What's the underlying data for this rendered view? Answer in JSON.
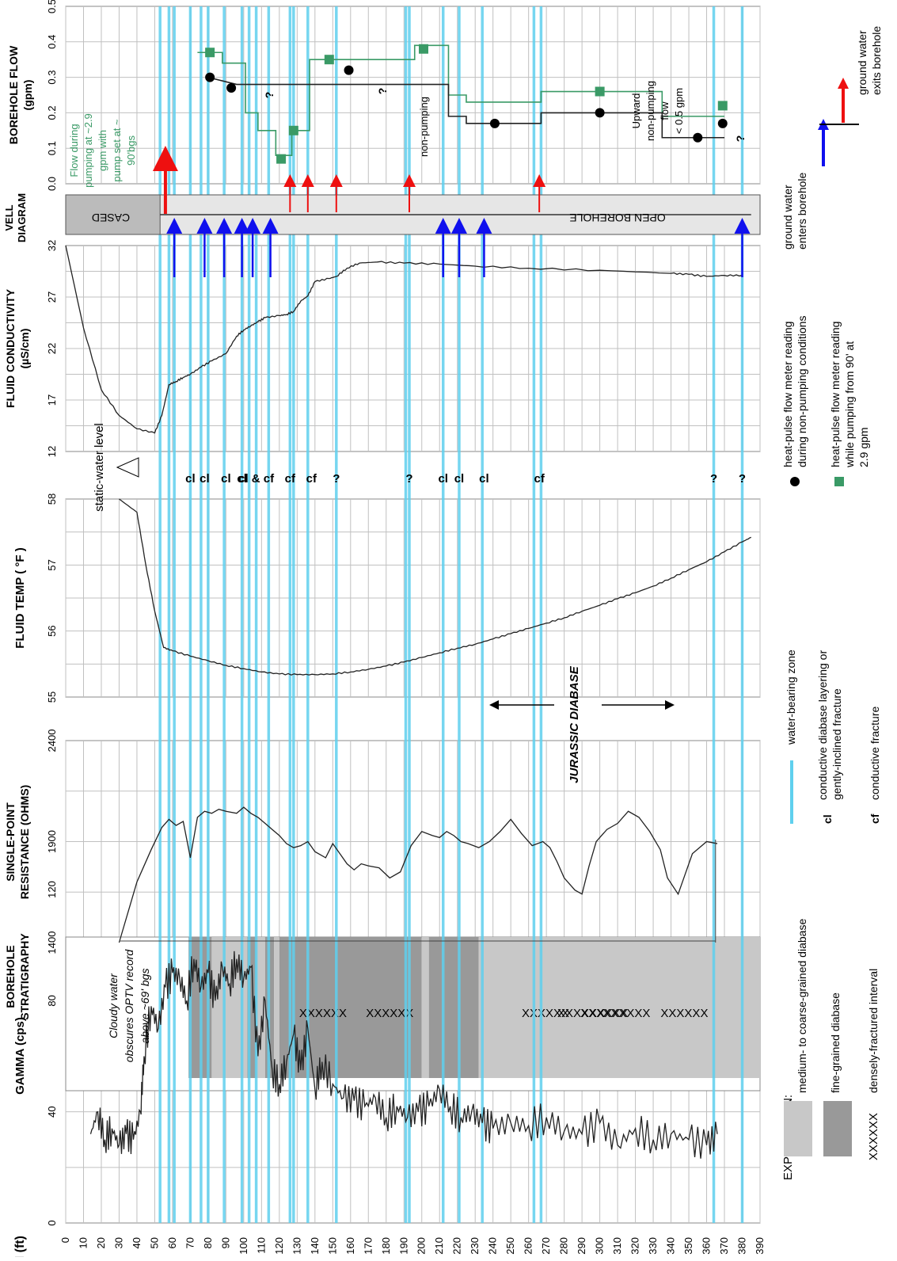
{
  "chart_data": {
    "type": "line",
    "orientation": "rotated-90",
    "depth_axis": {
      "label": "DEPTH (ft)",
      "range": [
        0,
        390
      ],
      "ticks": [
        0,
        10,
        20,
        30,
        40,
        50,
        60,
        70,
        80,
        90,
        100,
        110,
        120,
        130,
        140,
        150,
        160,
        170,
        180,
        190,
        200,
        210,
        220,
        230,
        240,
        250,
        260,
        270,
        280,
        290,
        300,
        310,
        320,
        330,
        340,
        350,
        360,
        370,
        380,
        390
      ]
    },
    "panels": [
      {
        "id": "gamma",
        "title": "GAMMA (cps)",
        "range": [
          0,
          120
        ],
        "ticks": [
          0,
          40,
          80,
          120
        ]
      },
      {
        "id": "strat",
        "title": "BOREHOLE STRATIGRAPHY",
        "range": [],
        "ticks": []
      },
      {
        "id": "spr",
        "title": "SINGLE-POINT RESISTANCE (OHMS)",
        "range": [
          1400,
          2400
        ],
        "ticks": [
          1400,
          1900,
          2400
        ]
      },
      {
        "id": "temp",
        "title": "FLUID TEMP ( °F )",
        "range": [
          55,
          58
        ],
        "ticks": [
          55,
          56,
          57,
          58
        ]
      },
      {
        "id": "cond",
        "title": "FLUID CONDUCTIVITY (µS/cm)",
        "range": [
          12,
          32
        ],
        "ticks": [
          12,
          17,
          22,
          27,
          32
        ]
      },
      {
        "id": "well",
        "title": "VELL DIAGRAM",
        "range": [],
        "ticks": []
      },
      {
        "id": "flow",
        "title": "BOREHOLE FLOW (gpm)",
        "range": [
          0,
          0.5
        ],
        "ticks": [
          "0.0",
          "0.1",
          "0.2",
          "0.3",
          "0.4",
          "0.5"
        ]
      }
    ],
    "series": {
      "gamma": {
        "depth": [
          14,
          18,
          22,
          26,
          30,
          34,
          38,
          42,
          44,
          48,
          52,
          56,
          60,
          64,
          68,
          72,
          76,
          80,
          84,
          88,
          92,
          96,
          100,
          104,
          108,
          112,
          116,
          120,
          124,
          128,
          132,
          136,
          140,
          144,
          150,
          156,
          162,
          168,
          174,
          180,
          186,
          192,
          198,
          204,
          210,
          216,
          222,
          228,
          234,
          240,
          250,
          260,
          270,
          280,
          290,
          300,
          310,
          320,
          330,
          340,
          350,
          360,
          366
        ],
        "value": [
          32,
          40,
          30,
          34,
          28,
          32,
          30,
          40,
          60,
          78,
          70,
          85,
          90,
          88,
          80,
          95,
          85,
          90,
          80,
          92,
          86,
          95,
          88,
          92,
          60,
          80,
          55,
          50,
          58,
          68,
          55,
          70,
          48,
          58,
          50,
          45,
          44,
          42,
          45,
          38,
          42,
          38,
          40,
          42,
          48,
          42,
          38,
          40,
          36,
          34,
          36,
          35,
          38,
          33,
          32,
          36,
          28,
          34,
          30,
          32,
          30,
          28,
          32
        ]
      },
      "spr": {
        "depth": [
          30,
          40,
          48,
          54,
          58,
          62,
          66,
          70,
          74,
          78,
          82,
          86,
          90,
          96,
          100,
          104,
          108,
          112,
          116,
          120,
          124,
          128,
          132,
          136,
          140,
          146,
          150,
          154,
          158,
          162,
          166,
          170,
          176,
          182,
          188,
          194,
          200,
          206,
          210,
          214,
          218,
          222,
          226,
          232,
          238,
          244,
          250,
          256,
          262,
          268,
          272,
          276,
          280,
          286,
          290,
          294,
          298,
          304,
          310,
          316,
          322,
          328,
          334,
          338,
          344,
          348,
          352,
          356,
          360,
          366
        ],
        "value": [
          1400,
          1700,
          1860,
          1970,
          2010,
          1980,
          2000,
          1820,
          2020,
          2050,
          2040,
          2060,
          2050,
          2040,
          2070,
          2040,
          2020,
          1990,
          1960,
          1930,
          1890,
          1870,
          1880,
          1900,
          1850,
          1820,
          1890,
          1840,
          1790,
          1760,
          1790,
          1780,
          1770,
          1720,
          1750,
          1880,
          1950,
          1930,
          1920,
          1950,
          1930,
          1900,
          1890,
          1870,
          1900,
          1950,
          2010,
          1940,
          1880,
          1900,
          1870,
          1800,
          1720,
          1660,
          1640,
          1780,
          1900,
          1960,
          1990,
          2050,
          2020,
          1950,
          1860,
          1720,
          1640,
          1740,
          1840,
          1870,
          1900,
          1890
        ]
      },
      "temp": {
        "depth": [
          30,
          40,
          45,
          50,
          55,
          60,
          70,
          80,
          90,
          100,
          110,
          120,
          130,
          140,
          150,
          160,
          170,
          180,
          190,
          200,
          210,
          220,
          230,
          240,
          250,
          260,
          270,
          280,
          290,
          300,
          310,
          320,
          330,
          340,
          350,
          360,
          370,
          380,
          385
        ],
        "value": [
          58.0,
          57.8,
          57.0,
          56.3,
          55.75,
          55.7,
          55.62,
          55.55,
          55.48,
          55.43,
          55.38,
          55.35,
          55.34,
          55.34,
          55.35,
          55.38,
          55.42,
          55.47,
          55.53,
          55.6,
          55.67,
          55.74,
          55.8,
          55.88,
          55.96,
          56.04,
          56.12,
          56.2,
          56.3,
          56.39,
          56.49,
          56.58,
          56.68,
          56.8,
          56.93,
          57.05,
          57.2,
          57.35,
          57.42
        ]
      },
      "conductivity": {
        "depth": [
          0,
          10,
          20,
          30,
          40,
          50,
          54,
          58,
          62,
          66,
          70,
          76,
          82,
          90,
          96,
          100,
          104,
          108,
          112,
          120,
          124,
          128,
          132,
          136,
          140,
          148,
          152,
          158,
          165,
          175,
          190,
          210,
          230,
          260,
          300,
          340,
          350,
          360,
          370,
          380
        ],
        "value": [
          32,
          24,
          18,
          15.5,
          14.2,
          13.8,
          15.5,
          18.5,
          18.8,
          19.2,
          19.5,
          20.2,
          20.8,
          21.5,
          23.2,
          23.8,
          24.2,
          24.6,
          25,
          25.2,
          25.3,
          25.6,
          26.6,
          27.1,
          28.5,
          28.8,
          29,
          29.8,
          30.3,
          30.4,
          30.3,
          30.2,
          30,
          29.8,
          29.6,
          29.3,
          29.2,
          29.0,
          29.1,
          29.1
        ]
      },
      "flow_nonpumping_points": {
        "depth": [
          81,
          93,
          159,
          241,
          300,
          355,
          369
        ],
        "value": [
          0.3,
          0.27,
          0.32,
          0.17,
          0.2,
          0.13,
          0.17
        ]
      },
      "flow_pumping_points": {
        "depth": [
          81,
          121,
          128,
          148,
          201,
          300,
          369
        ],
        "value": [
          0.37,
          0.07,
          0.15,
          0.35,
          0.38,
          0.26,
          0.22
        ]
      },
      "flow_pumping_step": {
        "depth": [
          74,
          88,
          88,
          101,
          101,
          108,
          108,
          118,
          118,
          127,
          127,
          137,
          137,
          196,
          196,
          215,
          215,
          225,
          225,
          267,
          267,
          335,
          335,
          370
        ],
        "value": [
          0.37,
          0.37,
          0.34,
          0.34,
          0.2,
          0.2,
          0.15,
          0.15,
          0.08,
          0.08,
          0.15,
          0.15,
          0.35,
          0.35,
          0.39,
          0.39,
          0.25,
          0.25,
          0.23,
          0.23,
          0.26,
          0.26,
          0.19,
          0.19
        ]
      },
      "flow_nonpumping_step": {
        "depth": [
          80,
          96,
          215,
          215,
          225,
          225,
          267,
          267,
          335,
          335,
          370
        ],
        "value": [
          0.3,
          0.28,
          0.28,
          0.19,
          0.19,
          0.17,
          0.17,
          0.2,
          0.2,
          0.13,
          0.13
        ]
      }
    },
    "water_bearing_zones_ft": [
      53,
      58,
      61,
      70,
      76,
      80,
      89,
      99,
      103,
      107,
      114,
      126,
      128,
      136,
      152,
      191,
      193,
      212,
      221,
      234,
      263,
      267,
      364,
      380
    ],
    "feature_labels": [
      {
        "depth": 70,
        "text": "cl"
      },
      {
        "depth": 78,
        "text": "cl"
      },
      {
        "depth": 90,
        "text": "cl"
      },
      {
        "depth": 99,
        "text": "cl"
      },
      {
        "depth": 107,
        "text": "cl & cf"
      },
      {
        "depth": 126,
        "text": "cf"
      },
      {
        "depth": 138,
        "text": "cf"
      },
      {
        "depth": 152,
        "text": "?"
      },
      {
        "depth": 193,
        "text": "?"
      },
      {
        "depth": 212,
        "text": "cl"
      },
      {
        "depth": 221,
        "text": "cl"
      },
      {
        "depth": 235,
        "text": "cl"
      },
      {
        "depth": 266,
        "text": "cf"
      },
      {
        "depth": 364,
        "text": "?"
      },
      {
        "depth": 380,
        "text": "?"
      }
    ],
    "stratigraphy": [
      {
        "top": 69,
        "bottom": 82,
        "type": "fine"
      },
      {
        "top": 82,
        "bottom": 102,
        "type": "medium"
      },
      {
        "top": 102,
        "bottom": 107,
        "type": "fine"
      },
      {
        "top": 107,
        "bottom": 112,
        "type": "medium"
      },
      {
        "top": 112,
        "bottom": 117,
        "type": "fine"
      },
      {
        "top": 117,
        "bottom": 120,
        "type": "medium"
      },
      {
        "top": 120,
        "bottom": 200,
        "type": "fine"
      },
      {
        "top": 200,
        "bottom": 204,
        "type": "medium"
      },
      {
        "top": 204,
        "bottom": 232,
        "type": "fine"
      },
      {
        "top": 232,
        "bottom": 390,
        "type": "medium"
      }
    ],
    "fracture_intervals": [
      [
        137,
        152
      ],
      [
        175,
        189
      ],
      [
        264,
        275
      ],
      [
        284,
        295
      ],
      [
        298,
        307
      ],
      [
        310,
        320
      ],
      [
        340,
        355
      ]
    ],
    "casing_bottom_ft": 53,
    "inflow_arrows_ft": [
      61,
      78,
      89,
      99,
      105,
      115,
      212,
      221,
      235,
      380
    ],
    "outflow_arrows_ft": [
      126,
      136,
      152,
      193,
      266
    ]
  },
  "annotations": {
    "panel_titles": {
      "gamma": "GAMMA (cps)",
      "strat_l1": "BOREHOLE",
      "strat_l2": "STRATIGRAPHY",
      "spr_l1": "SINGLE-POINT",
      "spr_l2": "RESISTANCE (OHMS)",
      "temp": "FLUID TEMP ( °F )",
      "cond_l1": "FLUID CONDUCTIVITY",
      "cond_l2": "(µS/cm)",
      "well_l1": "VELL",
      "well_l2": "DIAGRAM",
      "flow_l1": "BOREHOLE FLOW",
      "flow_l2": "(gpm)"
    },
    "depth_label": "DEPTH (ft)",
    "cloudy": [
      "Cloudy water",
      "obscures OPTV record",
      "above ~69' bgs"
    ],
    "static_water": "static-water level",
    "jurassic": "JURASSIC DIABASE",
    "cased": "CASED",
    "open_borehole": "OPEN   BOREHOLE",
    "flow_note": [
      "Flow during",
      "pumping at ~2.9",
      "gpm with",
      "pump set at ~",
      "90'bgs"
    ],
    "upward_note": [
      "Upward",
      "non-pumping",
      "flow",
      "< 0.5 gpm"
    ],
    "nonpumping": "non-pumping",
    "flow_q": "?",
    "explanation": "EXPLANATION:",
    "legend": {
      "medium": "medium- to coarse-grained diabase",
      "fine": "fine-grained diabase",
      "xx": "densely-fractured interval",
      "xx_symbol": "XXXXXX",
      "wbz": "water-bearing zone",
      "cl_sym": "cl",
      "cl_1": "conductive diabase layering or",
      "cl_2": "gently-inclined fracture",
      "cf_sym": "cf",
      "cf": "conductive fracture",
      "np_1": "heat-pulse flow meter reading",
      "np_2": "during  non-pumping conditions",
      "p_1": "heat-pulse flow meter reading",
      "p_2": "while pumping from 90' at",
      "p_3": "2.9 gpm",
      "gw_enters_1": "ground water",
      "gw_enters_2": "enters borehole",
      "gw_exits_1": "ground water",
      "gw_exits_2": "exits borehole"
    },
    "colors": {
      "zone": "#5fd0ee",
      "fine": "#999999",
      "medium": "#c8c8c8",
      "pump": "#3a9a66",
      "inflow": "#1010ee",
      "outflow": "#ee1010",
      "line": "#222222"
    }
  }
}
